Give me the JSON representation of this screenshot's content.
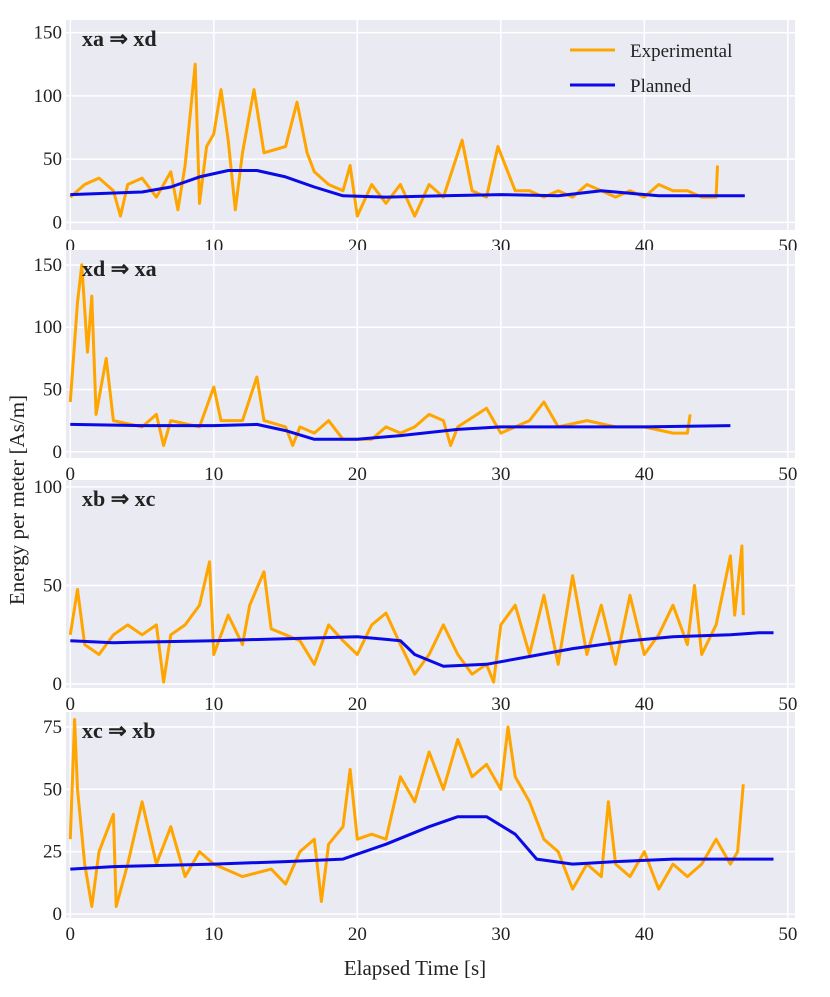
{
  "xlabel": "Elapsed Time [s]",
  "ylabel": "Energy per meter [As/m]",
  "chart_data": [
    {
      "type": "line",
      "title": "xa ⇒ xd",
      "legend": "upper right",
      "grid": true,
      "xlim": [
        -0.3,
        50.5
      ],
      "xticks": [
        0,
        10,
        20,
        30,
        40,
        50
      ],
      "ylim": [
        -6,
        160
      ],
      "yticks": [
        0,
        50,
        100,
        150
      ],
      "series": [
        {
          "name": "Experimental",
          "color": "#ffa500",
          "x": [
            0,
            1,
            2,
            3,
            3.5,
            4,
            5,
            6,
            7,
            7.5,
            8,
            8.7,
            9,
            9.5,
            10,
            10.5,
            11,
            11.5,
            12,
            12.8,
            13.5,
            15,
            15.8,
            16.5,
            17,
            18,
            19,
            19.5,
            20,
            21,
            22,
            23,
            24,
            25,
            26,
            27.3,
            28,
            29,
            29.8,
            31,
            32,
            33,
            34,
            35,
            36,
            37,
            38,
            39,
            40,
            41,
            42,
            43,
            44,
            45,
            45.1
          ],
          "values": [
            20,
            30,
            35,
            25,
            5,
            30,
            35,
            20,
            40,
            10,
            45,
            125,
            15,
            60,
            70,
            105,
            65,
            10,
            55,
            105,
            55,
            60,
            95,
            55,
            40,
            30,
            25,
            45,
            5,
            30,
            15,
            30,
            5,
            30,
            20,
            65,
            25,
            20,
            60,
            25,
            25,
            20,
            25,
            20,
            30,
            25,
            20,
            25,
            20,
            30,
            25,
            25,
            20,
            20,
            45
          ]
        },
        {
          "name": "Planned",
          "color": "#0a0ae6",
          "x": [
            0,
            5,
            7,
            9,
            11,
            13,
            15,
            17,
            19,
            22,
            26,
            30,
            34,
            37,
            39,
            41,
            44,
            47
          ],
          "values": [
            22,
            24,
            28,
            36,
            41,
            41,
            36,
            28,
            21,
            20,
            21,
            22,
            21,
            25,
            23,
            21,
            21,
            21
          ]
        }
      ]
    },
    {
      "type": "line",
      "title": "xd ⇒ xa",
      "grid": true,
      "xlim": [
        -0.3,
        50.5
      ],
      "xticks": [
        0,
        10,
        20,
        30,
        40,
        50
      ],
      "ylim": [
        -5,
        162
      ],
      "yticks": [
        0,
        50,
        100,
        150
      ],
      "series": [
        {
          "color": "#ffa500",
          "x": [
            0,
            0.5,
            0.8,
            1.2,
            1.5,
            1.8,
            2.5,
            3,
            5,
            6,
            6.5,
            7,
            9,
            10,
            10.5,
            12,
            13,
            13.5,
            15,
            15.5,
            16,
            17,
            18,
            19,
            21,
            22,
            23,
            24,
            25,
            26,
            26.5,
            27,
            29,
            30,
            31,
            32,
            33,
            34,
            36,
            38,
            40,
            42,
            43,
            43.2
          ],
          "values": [
            40,
            120,
            150,
            80,
            125,
            30,
            75,
            25,
            20,
            30,
            5,
            25,
            20,
            52,
            25,
            25,
            60,
            25,
            20,
            5,
            20,
            15,
            25,
            10,
            10,
            20,
            15,
            20,
            30,
            25,
            5,
            20,
            35,
            15,
            20,
            25,
            40,
            20,
            25,
            20,
            20,
            15,
            15,
            30
          ]
        },
        {
          "color": "#0a0ae6",
          "x": [
            0,
            5,
            10,
            13,
            15,
            17,
            20,
            23,
            27,
            30,
            35,
            40,
            46
          ],
          "values": [
            22,
            21,
            21,
            22,
            17,
            10,
            10,
            13,
            18,
            20,
            20,
            20,
            21
          ]
        }
      ]
    },
    {
      "type": "line",
      "title": "xb ⇒ xc",
      "grid": true,
      "xlim": [
        -0.3,
        50.5
      ],
      "xticks": [
        0,
        10,
        20,
        30,
        40,
        50
      ],
      "ylim": [
        -2,
        103.5
      ],
      "yticks": [
        0,
        50,
        100
      ],
      "series": [
        {
          "color": "#ffa500",
          "x": [
            0,
            0.5,
            1,
            2,
            3,
            4,
            5,
            6,
            6.5,
            7,
            8,
            9,
            9.7,
            10,
            11,
            12,
            12.5,
            13.5,
            14,
            15,
            16,
            17,
            18,
            19,
            20,
            21,
            22,
            23,
            24,
            25,
            26,
            27,
            28,
            29,
            29.5,
            30,
            31,
            32,
            33,
            34,
            35,
            36,
            37,
            38,
            39,
            40,
            41,
            42,
            43,
            43.5,
            44,
            45,
            46,
            46.3,
            46.8,
            46.9
          ],
          "values": [
            25,
            48,
            20,
            15,
            25,
            30,
            25,
            30,
            1,
            25,
            30,
            40,
            62,
            15,
            35,
            20,
            40,
            57,
            28,
            25,
            22,
            10,
            30,
            22,
            15,
            30,
            36,
            20,
            5,
            15,
            30,
            15,
            5,
            10,
            1,
            30,
            40,
            15,
            45,
            10,
            55,
            15,
            40,
            10,
            45,
            15,
            25,
            40,
            20,
            50,
            15,
            30,
            65,
            35,
            70,
            35
          ]
        },
        {
          "color": "#0a0ae6",
          "x": [
            0,
            3,
            10,
            15,
            20,
            23,
            24,
            26,
            29,
            32,
            35,
            39,
            42,
            46,
            48,
            49
          ],
          "values": [
            22,
            21,
            22,
            23,
            24,
            22,
            15,
            9,
            10,
            14,
            18,
            22,
            24,
            25,
            26,
            26
          ]
        }
      ]
    },
    {
      "type": "line",
      "title": "xc ⇒ xb",
      "grid": true,
      "xlim": [
        -0.3,
        50.5
      ],
      "xticks": [
        0,
        10,
        20,
        30,
        40,
        50
      ],
      "ylim": [
        -1.6,
        81
      ],
      "yticks": [
        0,
        25,
        50,
        75
      ],
      "series": [
        {
          "color": "#ffa500",
          "x": [
            0,
            0.3,
            0.5,
            1,
            1.5,
            2,
            3,
            3.2,
            4,
            5,
            6,
            7,
            8,
            9,
            10,
            12,
            14,
            15,
            16,
            17,
            17.5,
            18,
            19,
            19.5,
            20,
            21,
            22,
            23,
            24,
            25,
            26,
            27,
            28,
            29,
            30,
            30.5,
            31,
            32,
            33,
            34,
            35,
            36,
            37,
            37.5,
            38,
            39,
            40,
            41,
            42,
            43,
            44,
            45,
            46,
            46.5,
            46.9
          ],
          "values": [
            30,
            78,
            50,
            20,
            3,
            25,
            40,
            3,
            20,
            45,
            20,
            35,
            15,
            25,
            20,
            15,
            18,
            12,
            25,
            30,
            5,
            28,
            35,
            58,
            30,
            32,
            30,
            55,
            45,
            65,
            50,
            70,
            55,
            60,
            50,
            75,
            55,
            45,
            30,
            25,
            10,
            20,
            15,
            45,
            20,
            15,
            25,
            10,
            20,
            15,
            20,
            30,
            20,
            25,
            52
          ]
        },
        {
          "color": "#0a0ae6",
          "x": [
            0,
            3,
            10,
            15,
            19,
            22,
            25,
            27,
            29,
            31,
            32.5,
            35,
            38,
            42,
            46,
            49
          ],
          "values": [
            18,
            19,
            20,
            21,
            22,
            28,
            35,
            39,
            39,
            32,
            22,
            20,
            21,
            22,
            22,
            22
          ]
        }
      ]
    }
  ]
}
